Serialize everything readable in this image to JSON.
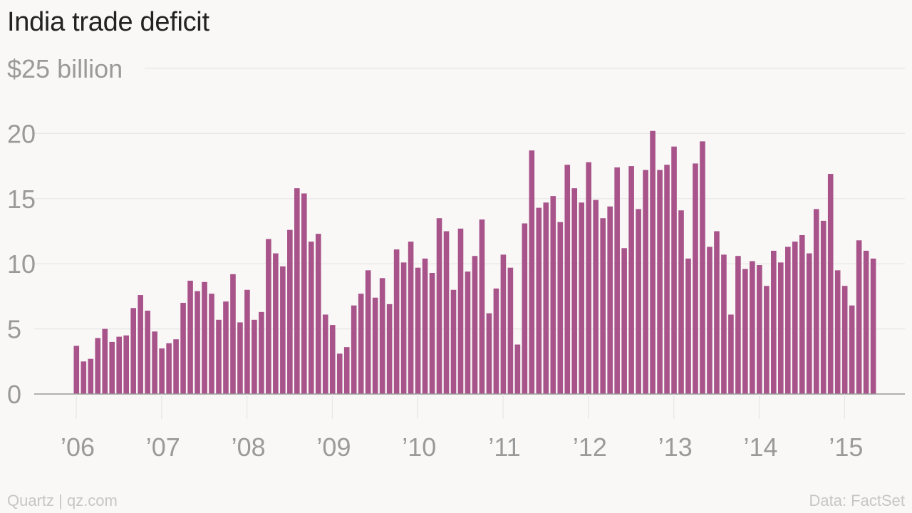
{
  "title": "India trade deficit",
  "footer": {
    "source_left": "Quartz | qz.com",
    "source_right": "Data: FactSet"
  },
  "colors": {
    "bar": "#a8538a",
    "grid": "#e6e6e6",
    "axis": "#999999",
    "tick_text": "#9a9a9a",
    "background": "#f9f8f7"
  },
  "chart_data": {
    "type": "bar",
    "title": "India trade deficit",
    "ylabel": "",
    "xlabel": "",
    "unit_label": "$25 billion",
    "ylim": [
      0,
      25
    ],
    "y_ticks": [
      {
        "value": 25,
        "label": "$25 billion"
      },
      {
        "value": 20,
        "label": "20"
      },
      {
        "value": 15,
        "label": "15"
      },
      {
        "value": 10,
        "label": "10"
      },
      {
        "value": 5,
        "label": "5"
      },
      {
        "value": 0,
        "label": "0"
      }
    ],
    "x_ticks": [
      {
        "index": 0,
        "label": "’06"
      },
      {
        "index": 12,
        "label": "’07"
      },
      {
        "index": 24,
        "label": "’08"
      },
      {
        "index": 36,
        "label": "’09"
      },
      {
        "index": 48,
        "label": "’10"
      },
      {
        "index": 60,
        "label": "’11"
      },
      {
        "index": 72,
        "label": "’12"
      },
      {
        "index": 84,
        "label": "’13"
      },
      {
        "index": 96,
        "label": "’14"
      },
      {
        "index": 108,
        "label": "’15"
      }
    ],
    "grid": true,
    "legend": "none",
    "start_period": "2006-01",
    "frequency": "monthly",
    "values": [
      3.7,
      2.5,
      2.7,
      4.3,
      5.0,
      4.0,
      4.4,
      4.5,
      6.6,
      7.6,
      6.4,
      4.8,
      3.5,
      3.9,
      4.2,
      7.0,
      8.7,
      7.9,
      8.6,
      7.7,
      5.7,
      7.1,
      9.2,
      5.5,
      8.0,
      5.7,
      6.3,
      11.9,
      10.8,
      9.8,
      12.6,
      15.8,
      15.4,
      11.7,
      12.3,
      6.1,
      5.3,
      3.1,
      3.6,
      6.8,
      7.7,
      9.5,
      7.4,
      8.9,
      6.9,
      11.1,
      10.1,
      11.7,
      9.7,
      10.4,
      9.3,
      13.5,
      12.5,
      8.0,
      12.7,
      9.4,
      10.6,
      13.4,
      6.2,
      8.1,
      10.7,
      9.7,
      3.8,
      13.1,
      18.7,
      14.3,
      14.7,
      15.2,
      13.2,
      17.6,
      15.8,
      14.7,
      17.8,
      14.9,
      13.5,
      14.4,
      17.4,
      11.2,
      17.5,
      14.2,
      17.2,
      20.2,
      17.2,
      17.6,
      19.0,
      14.1,
      10.4,
      17.7,
      19.4,
      11.3,
      12.5,
      10.7,
      6.1,
      10.6,
      9.6,
      10.2,
      9.9,
      8.3,
      11.0,
      10.1,
      11.3,
      11.7,
      12.2,
      10.8,
      14.2,
      13.3,
      16.9,
      9.5,
      8.3,
      6.8,
      11.8,
      11.0,
      10.4
    ]
  }
}
